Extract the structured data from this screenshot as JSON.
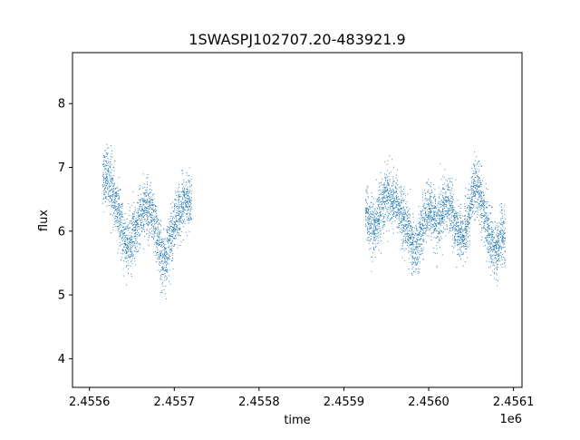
{
  "chart_data": {
    "type": "scatter",
    "title": "1SWASPJ102707.20-483921.9",
    "xlabel": "time",
    "ylabel": "flux",
    "x_offset_label": "1e6",
    "x_ticks": [
      2.4556,
      2.4557,
      2.4558,
      2.4559,
      2.456,
      2.4561
    ],
    "x_tick_labels": [
      "2.4556",
      "2.4557",
      "2.4558",
      "2.4559",
      "2.4560",
      "2.4561"
    ],
    "y_ticks": [
      4,
      5,
      6,
      7,
      8
    ],
    "y_tick_labels": [
      "4",
      "5",
      "6",
      "7",
      "8"
    ],
    "xlim": [
      2.45558,
      2.45611
    ],
    "ylim": [
      3.55,
      8.8
    ],
    "grid": false,
    "marker_color": "#1f77b4",
    "series": [
      {
        "x": [
          2.455615,
          2.45562,
          2.455625,
          2.45563,
          2.455635,
          2.45564,
          2.455645,
          2.45565,
          2.455655,
          2.45566,
          2.455665,
          2.45567,
          2.455675,
          2.45568,
          2.455685,
          2.45569,
          2.455695,
          2.4557,
          2.455705,
          2.45571,
          2.455715,
          2.455925,
          2.45593,
          2.455935,
          2.45594,
          2.455945,
          2.45595,
          2.455955,
          2.45596,
          2.455965,
          2.45597,
          2.455975,
          2.45598,
          2.455985,
          2.45599,
          2.455995,
          2.456,
          2.456005,
          2.45601,
          2.456015,
          2.45602,
          2.456025,
          2.45603,
          2.456035,
          2.45604,
          2.456045,
          2.45605,
          2.456055,
          2.45606,
          2.456065,
          2.45607,
          2.456075,
          2.45608,
          2.456085
        ],
        "y": [
          6.8,
          6.9,
          6.75,
          6.45,
          6.2,
          5.85,
          5.75,
          5.9,
          6.05,
          6.25,
          6.4,
          6.35,
          6.15,
          5.9,
          5.55,
          5.55,
          5.9,
          6.15,
          6.3,
          6.4,
          6.45,
          6.35,
          6.1,
          5.95,
          6.25,
          6.45,
          6.6,
          6.55,
          6.45,
          6.35,
          6.2,
          6.0,
          5.8,
          5.7,
          5.95,
          6.2,
          6.35,
          6.25,
          6.1,
          6.3,
          6.45,
          6.4,
          6.15,
          5.95,
          5.9,
          6.1,
          6.5,
          6.75,
          6.55,
          6.3,
          6.0,
          5.75,
          5.7,
          5.95
        ]
      }
    ]
  }
}
